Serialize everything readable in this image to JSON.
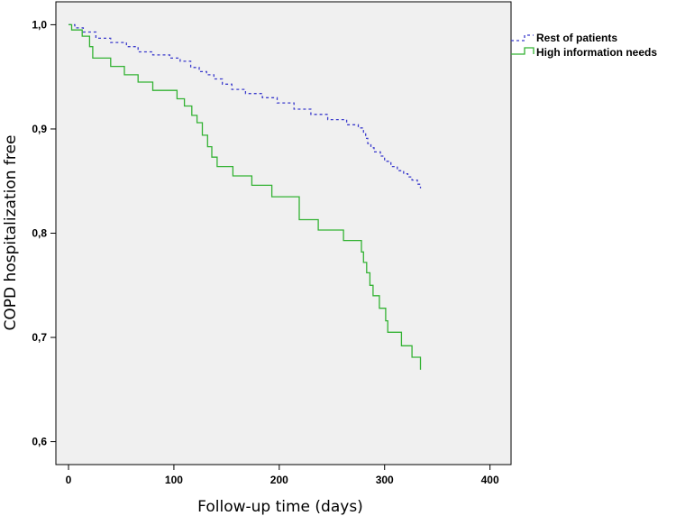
{
  "chart_data": {
    "type": "line",
    "step": true,
    "xlabel": "Follow-up time (days)",
    "ylabel": "COPD hospitalization free",
    "xlim": [
      -12,
      420
    ],
    "ylim": [
      0.578,
      1.022
    ],
    "x_ticks": [
      0,
      100,
      200,
      300,
      400
    ],
    "x_tick_labels": [
      "0",
      "100",
      "200",
      "300",
      "400"
    ],
    "y_ticks": [
      0.6,
      0.7,
      0.8,
      0.9,
      1.0
    ],
    "y_tick_labels": [
      "0,6",
      "0,7",
      "0,8",
      "0,9",
      "1,0"
    ],
    "grid": false,
    "legend_position": "top-right, outside plot",
    "plot_background": "#f0f0f0",
    "series": [
      {
        "name": "Rest of patients",
        "color": "#3a3acc",
        "style": "dashed",
        "x": [
          0,
          6,
          14,
          26,
          40,
          55,
          66,
          80,
          96,
          106,
          116,
          124,
          131,
          138,
          146,
          155,
          168,
          184,
          198,
          214,
          230,
          246,
          264,
          275,
          280,
          282,
          284,
          287,
          290,
          296,
          300,
          306,
          312,
          318,
          322,
          326,
          331,
          334
        ],
        "y": [
          1.0,
          0.997,
          0.993,
          0.987,
          0.983,
          0.979,
          0.974,
          0.971,
          0.968,
          0.965,
          0.959,
          0.955,
          0.952,
          0.948,
          0.943,
          0.938,
          0.934,
          0.93,
          0.925,
          0.919,
          0.914,
          0.909,
          0.904,
          0.901,
          0.896,
          0.891,
          0.886,
          0.882,
          0.878,
          0.874,
          0.869,
          0.864,
          0.86,
          0.857,
          0.854,
          0.851,
          0.847,
          0.843
        ]
      },
      {
        "name": "High information needs",
        "color": "#33b233",
        "style": "solid",
        "x": [
          0,
          3,
          13,
          20,
          23,
          40,
          53,
          66,
          80,
          103,
          110,
          117,
          122,
          127,
          132,
          136,
          141,
          156,
          174,
          193,
          219,
          237,
          261,
          278,
          280,
          283,
          286,
          289,
          295,
          301,
          303,
          316,
          326,
          334
        ],
        "y": [
          1.0,
          0.995,
          0.989,
          0.979,
          0.968,
          0.96,
          0.952,
          0.945,
          0.937,
          0.929,
          0.922,
          0.913,
          0.906,
          0.894,
          0.883,
          0.873,
          0.864,
          0.855,
          0.846,
          0.835,
          0.813,
          0.803,
          0.793,
          0.782,
          0.772,
          0.762,
          0.75,
          0.74,
          0.728,
          0.716,
          0.705,
          0.692,
          0.681,
          0.669
        ]
      }
    ]
  }
}
